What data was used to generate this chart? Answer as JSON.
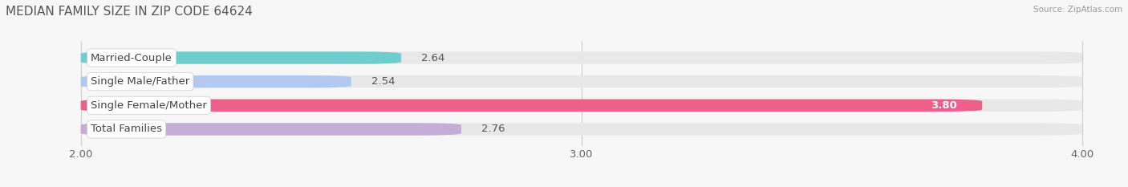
{
  "title": "MEDIAN FAMILY SIZE IN ZIP CODE 64624",
  "source": "Source: ZipAtlas.com",
  "categories": [
    "Married-Couple",
    "Single Male/Father",
    "Single Female/Mother",
    "Total Families"
  ],
  "values": [
    2.64,
    2.54,
    3.8,
    2.76
  ],
  "bar_colors": [
    "#6ecece",
    "#b3c8ee",
    "#ee5f8a",
    "#c4aed8"
  ],
  "xlim": [
    1.85,
    4.08
  ],
  "xmin": 2.0,
  "xmax": 4.0,
  "xticks": [
    2.0,
    3.0,
    4.0
  ],
  "xticklabels": [
    "2.00",
    "3.00",
    "4.00"
  ],
  "background_color": "#f7f7f7",
  "bar_bg_color": "#e8e8e8",
  "label_fontsize": 9.5,
  "value_fontsize": 9.5,
  "title_fontsize": 11,
  "bar_height": 0.52,
  "figsize": [
    14.06,
    2.33
  ],
  "dpi": 100
}
